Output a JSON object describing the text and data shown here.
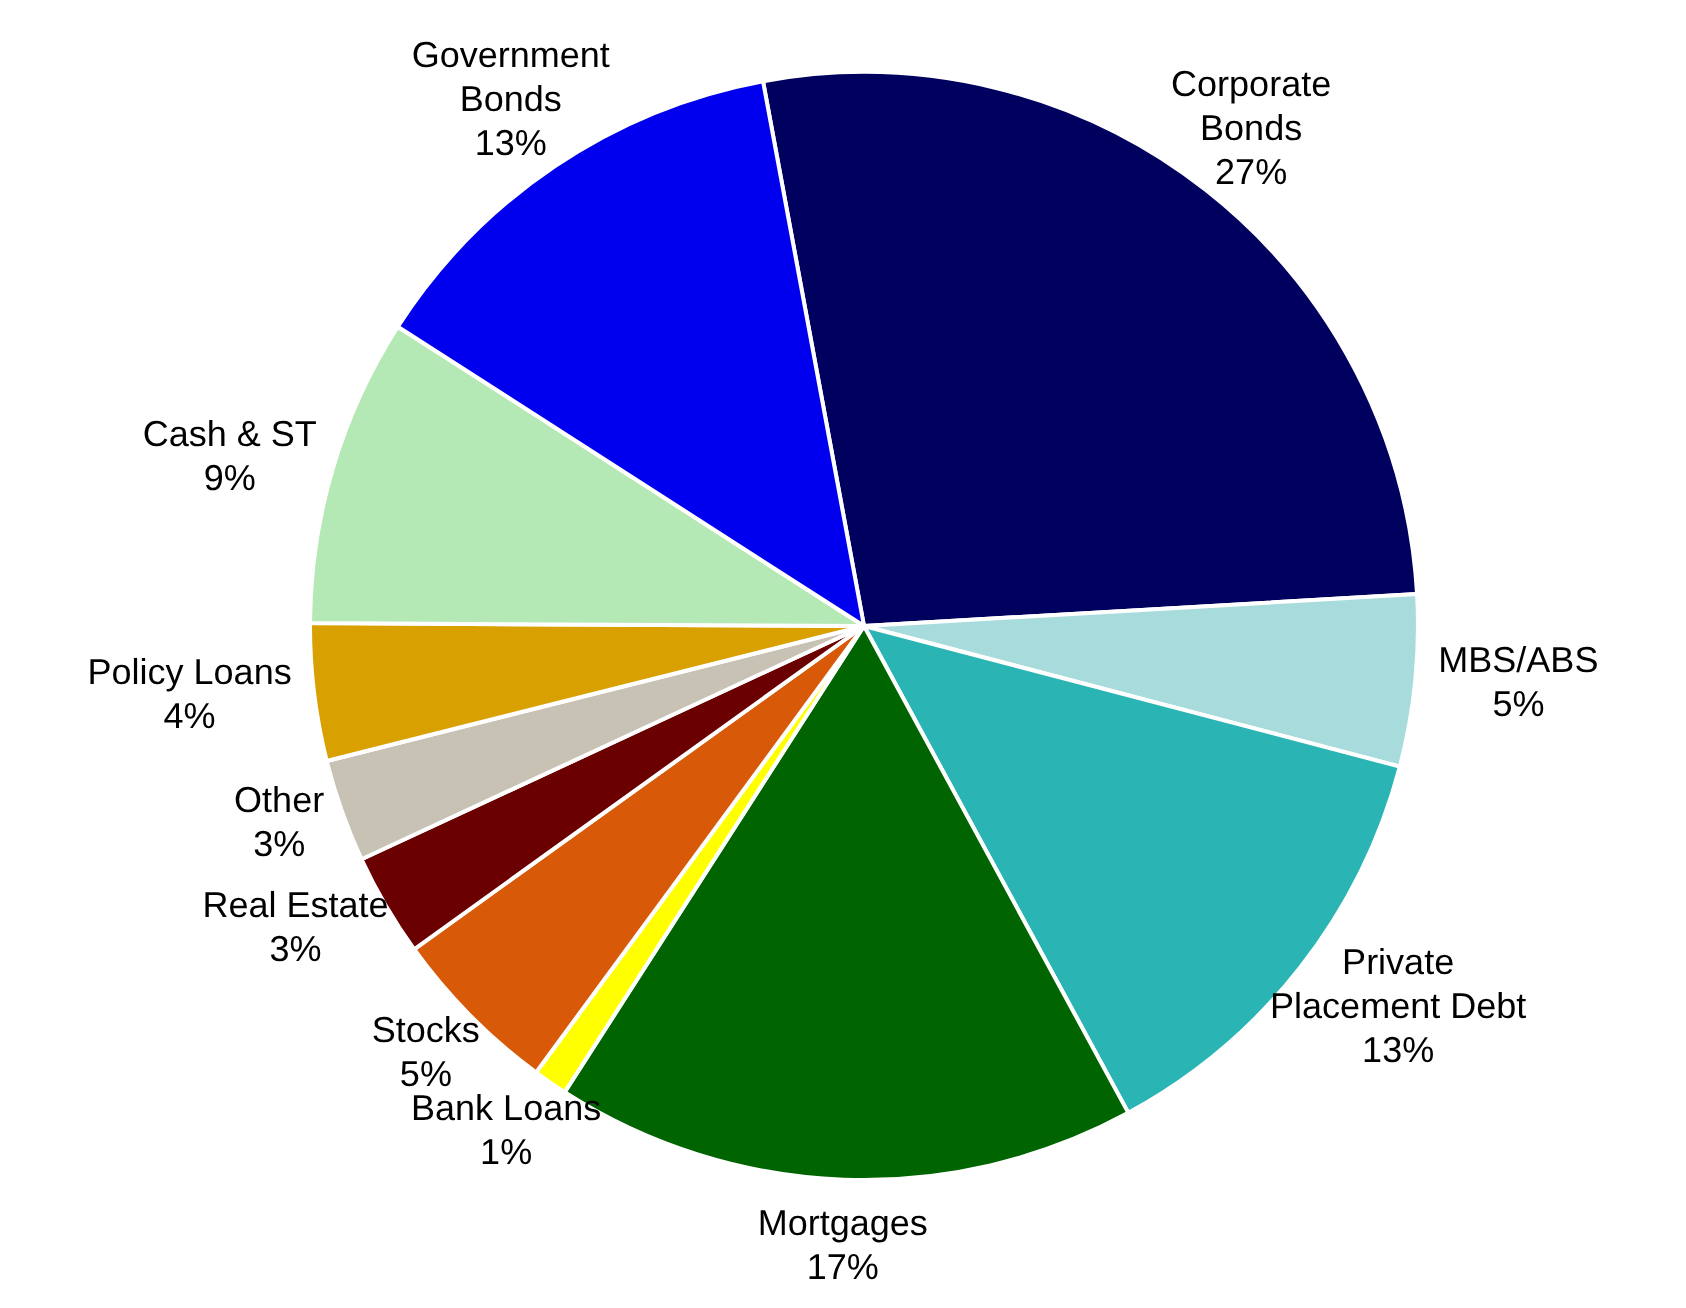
{
  "chart_data": {
    "type": "pie",
    "categories": [
      "Corporate Bonds",
      "MBS/ABS",
      "Private Placement Debt",
      "Mortgages",
      "Bank Loans",
      "Stocks",
      "Real Estate",
      "Other",
      "Policy Loans",
      "Cash & ST",
      "Government Bonds"
    ],
    "values": [
      27,
      5,
      13,
      17,
      1,
      5,
      3,
      3,
      4,
      9,
      13
    ],
    "colors": [
      "#00005e",
      "#a8dcdc",
      "#2ab4b4",
      "#006400",
      "#ffff00",
      "#d85a08",
      "#6a0000",
      "#c8c2b4",
      "#d8a000",
      "#b4e8b4",
      "#0000ee"
    ],
    "value_labels": [
      "27%",
      "5%",
      "13%",
      "17%",
      "1%",
      "5%",
      "3%",
      "3%",
      "4%",
      "9%",
      "13%"
    ],
    "legend": false
  }
}
